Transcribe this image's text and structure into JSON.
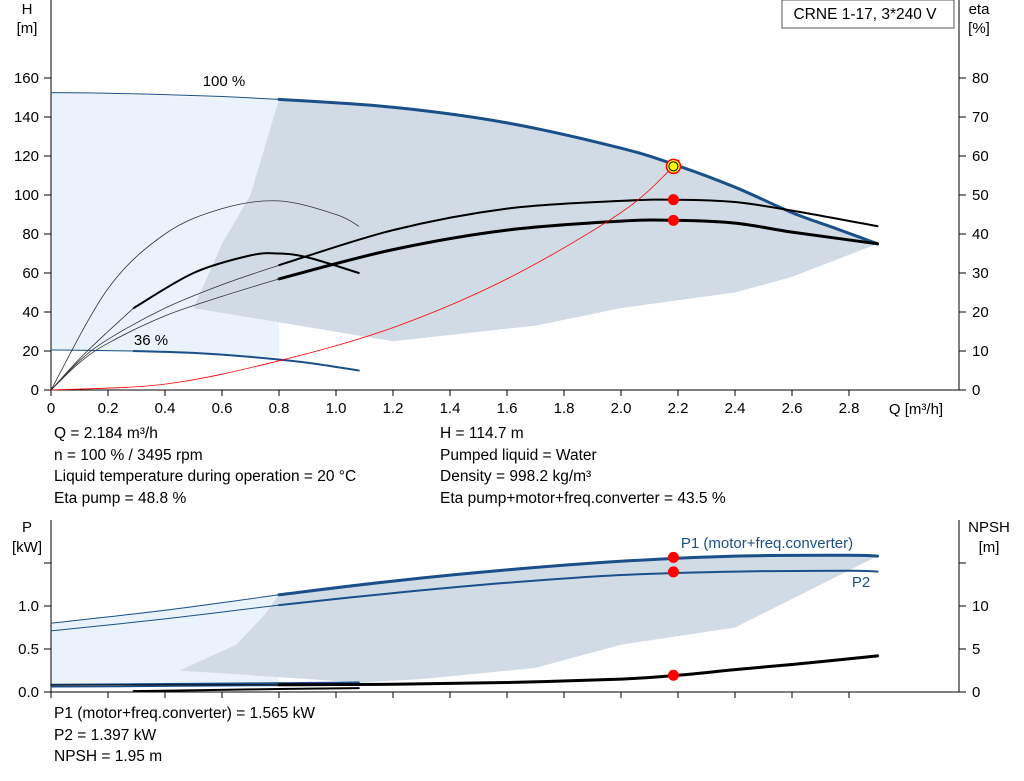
{
  "model_label": "CRNE 1-17, 3*240 V",
  "info_top_left": [
    "Q = 2.184 m³/h",
    "n = 100 % / 3495 rpm",
    "Liquid temperature during operation = 20 °C",
    "Eta pump = 48.8 %"
  ],
  "info_top_right": [
    "H = 114.7 m",
    "Pumped liquid = Water",
    "Density = 998.2 kg/m³",
    "Eta pump+motor+freq.converter = 43.5 %"
  ],
  "info_bottom": [
    "P1 (motor+freq.converter) = 1.565 kW",
    "P2 = 1.397 kW",
    "NPSH = 1.95 m"
  ],
  "colors": {
    "pump_curve": "#1a4f8a",
    "eta_curve": "#000000",
    "system_curve": "#ff0000",
    "operating_point": "#ff0000",
    "duty_marker": "#ffff00",
    "area_dark": "#d0dbe6",
    "area_light": "#eaf3fb",
    "label_blue": "#1a4f8a"
  },
  "chart_data": [
    {
      "type": "line",
      "name": "head-and-efficiency",
      "xlabel": "Q [m³/h]",
      "ylabel": "H [m]",
      "y2label": "eta [%]",
      "xlim": [
        0,
        2.9
      ],
      "ylim": [
        0,
        160
      ],
      "y2lim": [
        0,
        80
      ],
      "x_ticks": [
        "0",
        "0.2",
        "0.4",
        "0.6",
        "0.8",
        "1.0",
        "1.2",
        "1.4",
        "1.6",
        "1.8",
        "2.0",
        "2.2",
        "2.4",
        "2.6",
        "2.8"
      ],
      "y_ticks": [
        "0",
        "20",
        "40",
        "60",
        "80",
        "100",
        "120",
        "140",
        "160"
      ],
      "y2_ticks": [
        "0",
        "10",
        "20",
        "30",
        "40",
        "50",
        "60",
        "70",
        "80"
      ],
      "curve_labels": [
        "100 %",
        "36 %"
      ],
      "series": [
        {
          "key": "H_100_thin",
          "x": [
            0,
            0.2,
            0.4,
            0.6,
            0.8
          ],
          "y": [
            152.5,
            152.2,
            151.5,
            150.5,
            149
          ]
        },
        {
          "key": "H_100",
          "x": [
            0.8,
            1.2,
            1.6,
            2.0,
            2.2,
            2.4,
            2.6,
            2.75,
            2.9
          ],
          "y": [
            149,
            145,
            137,
            124,
            115,
            104,
            91,
            83,
            75
          ]
        },
        {
          "key": "H_36_thin",
          "x": [
            0,
            0.1,
            0.2,
            0.29
          ],
          "y": [
            20.5,
            20.4,
            20.2,
            20
          ]
        },
        {
          "key": "H_36",
          "x": [
            0.29,
            0.5,
            0.7,
            0.9,
            1.08
          ],
          "y": [
            20,
            19,
            17,
            14,
            10
          ]
        },
        {
          "key": "eta_100",
          "axis": "right",
          "x": [
            0.8,
            1.2,
            1.6,
            2.0,
            2.2,
            2.4,
            2.6,
            2.9
          ],
          "y": [
            28.5,
            36,
            41,
            43.3,
            43.5,
            42.8,
            40.5,
            37.5
          ]
        },
        {
          "key": "eta_100_thin",
          "axis": "right",
          "x": [
            0,
            0.1,
            0.2,
            0.4,
            0.6,
            0.8
          ],
          "y": [
            0,
            7,
            12,
            19,
            24,
            28.5
          ]
        },
        {
          "key": "etapump_100",
          "axis": "right",
          "x": [
            0.8,
            1.2,
            1.6,
            2.0,
            2.2,
            2.4,
            2.6,
            2.9
          ],
          "y": [
            32,
            41,
            46.5,
            48.5,
            48.8,
            48.2,
            46,
            42
          ]
        },
        {
          "key": "etapump_100_thin",
          "axis": "right",
          "x": [
            0,
            0.1,
            0.2,
            0.4,
            0.6,
            0.8
          ],
          "y": [
            0,
            7.5,
            13,
            21,
            27,
            32
          ]
        },
        {
          "key": "eta_36",
          "axis": "right",
          "x": [
            0.29,
            0.5,
            0.7,
            0.8,
            0.9,
            1.08
          ],
          "y": [
            21,
            30,
            34.5,
            35,
            34,
            30
          ]
        },
        {
          "key": "eta_36_thin",
          "axis": "right",
          "x": [
            0,
            0.1,
            0.2,
            0.29
          ],
          "y": [
            0,
            8,
            15,
            21
          ]
        },
        {
          "key": "etapump_36_thin",
          "axis": "right",
          "x": [
            0,
            0.2,
            0.4,
            0.6,
            0.8,
            1.0,
            1.08
          ],
          "y": [
            0,
            26,
            40,
            46.5,
            48.5,
            45,
            42
          ]
        },
        {
          "key": "system_curve",
          "x": [
            0,
            0.4,
            0.8,
            1.2,
            1.6,
            2.0,
            2.184,
            2.2
          ],
          "y": [
            0,
            3,
            15,
            32,
            57,
            91,
            114.7,
            118
          ]
        }
      ],
      "envelope": {
        "upper": [
          [
            0,
            152.5
          ],
          [
            0.8,
            149
          ],
          [
            1.2,
            145
          ],
          [
            1.6,
            137
          ],
          [
            2.0,
            124
          ],
          [
            2.2,
            115
          ],
          [
            2.4,
            104
          ],
          [
            2.6,
            91
          ],
          [
            2.9,
            75
          ]
        ],
        "lower": [
          [
            2.9,
            75
          ],
          [
            2.6,
            58
          ],
          [
            2.4,
            50
          ],
          [
            2.0,
            42
          ],
          [
            1.7,
            33
          ],
          [
            1.2,
            25
          ],
          [
            1.08,
            10
          ],
          [
            0.9,
            14
          ],
          [
            0.7,
            17
          ],
          [
            0.5,
            19
          ],
          [
            0.29,
            20
          ],
          [
            0,
            20.5
          ]
        ]
      },
      "operating_points": [
        {
          "x": 2.184,
          "y": 114.7,
          "axis": "left"
        },
        {
          "x": 2.184,
          "y": 48.8,
          "axis": "right"
        },
        {
          "x": 2.184,
          "y": 43.5,
          "axis": "right"
        }
      ]
    },
    {
      "type": "line",
      "name": "power-and-npsh",
      "ylabel": "P [kW]",
      "y2label": "NPSH [m]",
      "xlim": [
        0,
        2.9
      ],
      "ylim": [
        0,
        1.5
      ],
      "y2lim": [
        0,
        15
      ],
      "y_ticks": [
        "0.0",
        "0.5",
        "1.0"
      ],
      "y2_ticks": [
        "0",
        "5",
        "10"
      ],
      "curve_labels": [
        "P1 (motor+freq.converter)",
        "P2"
      ],
      "series": [
        {
          "key": "P1_thin",
          "x": [
            0,
            0.4,
            0.8
          ],
          "y": [
            0.8,
            0.95,
            1.13
          ]
        },
        {
          "key": "P1",
          "x": [
            0.8,
            1.2,
            1.6,
            2.0,
            2.4,
            2.8,
            2.9
          ],
          "y": [
            1.13,
            1.29,
            1.42,
            1.52,
            1.58,
            1.59,
            1.58
          ]
        },
        {
          "key": "P2_thin",
          "x": [
            0,
            0.4,
            0.8
          ],
          "y": [
            0.71,
            0.85,
            1.01
          ]
        },
        {
          "key": "P2",
          "x": [
            0.8,
            1.2,
            1.6,
            2.0,
            2.4,
            2.8,
            2.9
          ],
          "y": [
            1.01,
            1.15,
            1.27,
            1.36,
            1.4,
            1.41,
            1.4
          ]
        },
        {
          "key": "P1_36",
          "x": [
            0,
            0.29,
            0.7,
            1.08
          ],
          "y": [
            0.085,
            0.09,
            0.1,
            0.11
          ]
        },
        {
          "key": "P2_36",
          "x": [
            0,
            0.29,
            0.7,
            1.08
          ],
          "y": [
            0.06,
            0.065,
            0.075,
            0.08
          ]
        },
        {
          "key": "NPSH",
          "axis": "right",
          "x": [
            0.8,
            1.2,
            1.6,
            2.0,
            2.2,
            2.4,
            2.6,
            2.9
          ],
          "y": [
            0.85,
            0.9,
            1.1,
            1.5,
            1.95,
            2.6,
            3.2,
            4.2
          ]
        },
        {
          "key": "NPSH_thin",
          "axis": "right",
          "x": [
            0,
            0.4,
            0.8
          ],
          "y": [
            0.8,
            0.82,
            0.85
          ]
        },
        {
          "key": "NPSH_36",
          "axis": "right",
          "x": [
            0.29,
            0.7,
            1.08
          ],
          "y": [
            0.1,
            0.3,
            0.45
          ]
        }
      ],
      "envelope": {
        "upper": [
          [
            0,
            0.8
          ],
          [
            0.4,
            0.95
          ],
          [
            0.8,
            1.13
          ],
          [
            1.2,
            1.29
          ],
          [
            1.6,
            1.42
          ],
          [
            2.0,
            1.52
          ],
          [
            2.4,
            1.58
          ],
          [
            2.8,
            1.59
          ],
          [
            2.9,
            1.58
          ]
        ],
        "lower": [
          [
            2.9,
            1.58
          ],
          [
            2.4,
            0.75
          ],
          [
            2.0,
            0.55
          ],
          [
            1.7,
            0.28
          ],
          [
            1.3,
            0.15
          ],
          [
            1.08,
            0.11
          ],
          [
            0.7,
            0.1
          ],
          [
            0.29,
            0.09
          ],
          [
            0,
            0.085
          ]
        ]
      },
      "operating_points": [
        {
          "x": 2.184,
          "y": 1.565,
          "axis": "left"
        },
        {
          "x": 2.184,
          "y": 1.397,
          "axis": "left"
        },
        {
          "x": 2.184,
          "y": 1.95,
          "axis": "right"
        }
      ]
    }
  ]
}
